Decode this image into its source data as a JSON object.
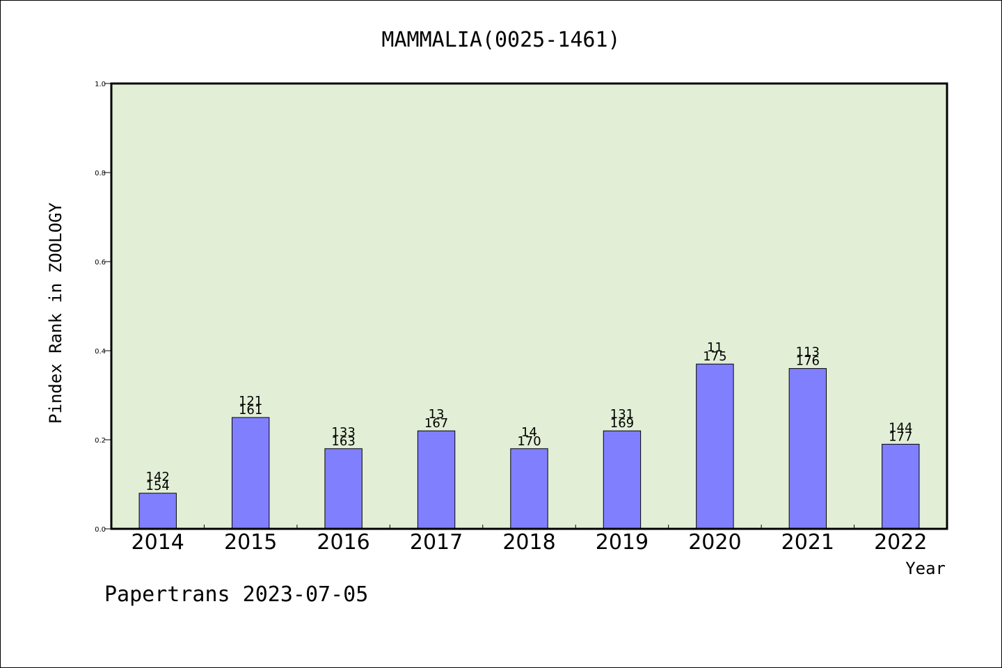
{
  "chart_data": {
    "type": "bar",
    "title": "MAMMALIA(0025-1461)",
    "xlabel": "Year",
    "ylabel": "Pindex Rank in ZOOLOGY",
    "ylim": [
      0.0,
      1.0
    ],
    "yticks": [
      "0.0",
      "0.2",
      "0.4",
      "0.6",
      "0.8",
      "1.0"
    ],
    "categories": [
      "2014",
      "2015",
      "2016",
      "2017",
      "2018",
      "2019",
      "2020",
      "2021",
      "2022"
    ],
    "values": [
      0.08,
      0.25,
      0.18,
      0.22,
      0.18,
      0.22,
      0.37,
      0.36,
      0.19
    ],
    "labels_top": [
      "142",
      "121",
      "133",
      "13",
      "14",
      "131",
      "11",
      "113",
      "144"
    ],
    "labels_bottom": [
      "154",
      "161",
      "163",
      "167",
      "170",
      "169",
      "175",
      "176",
      "177"
    ],
    "grid": false,
    "colors": {
      "bar_fill": "#8080ff",
      "plot_background": "#e2efd6",
      "axis": "#000000"
    }
  },
  "footer": "Papertrans 2023-07-05"
}
